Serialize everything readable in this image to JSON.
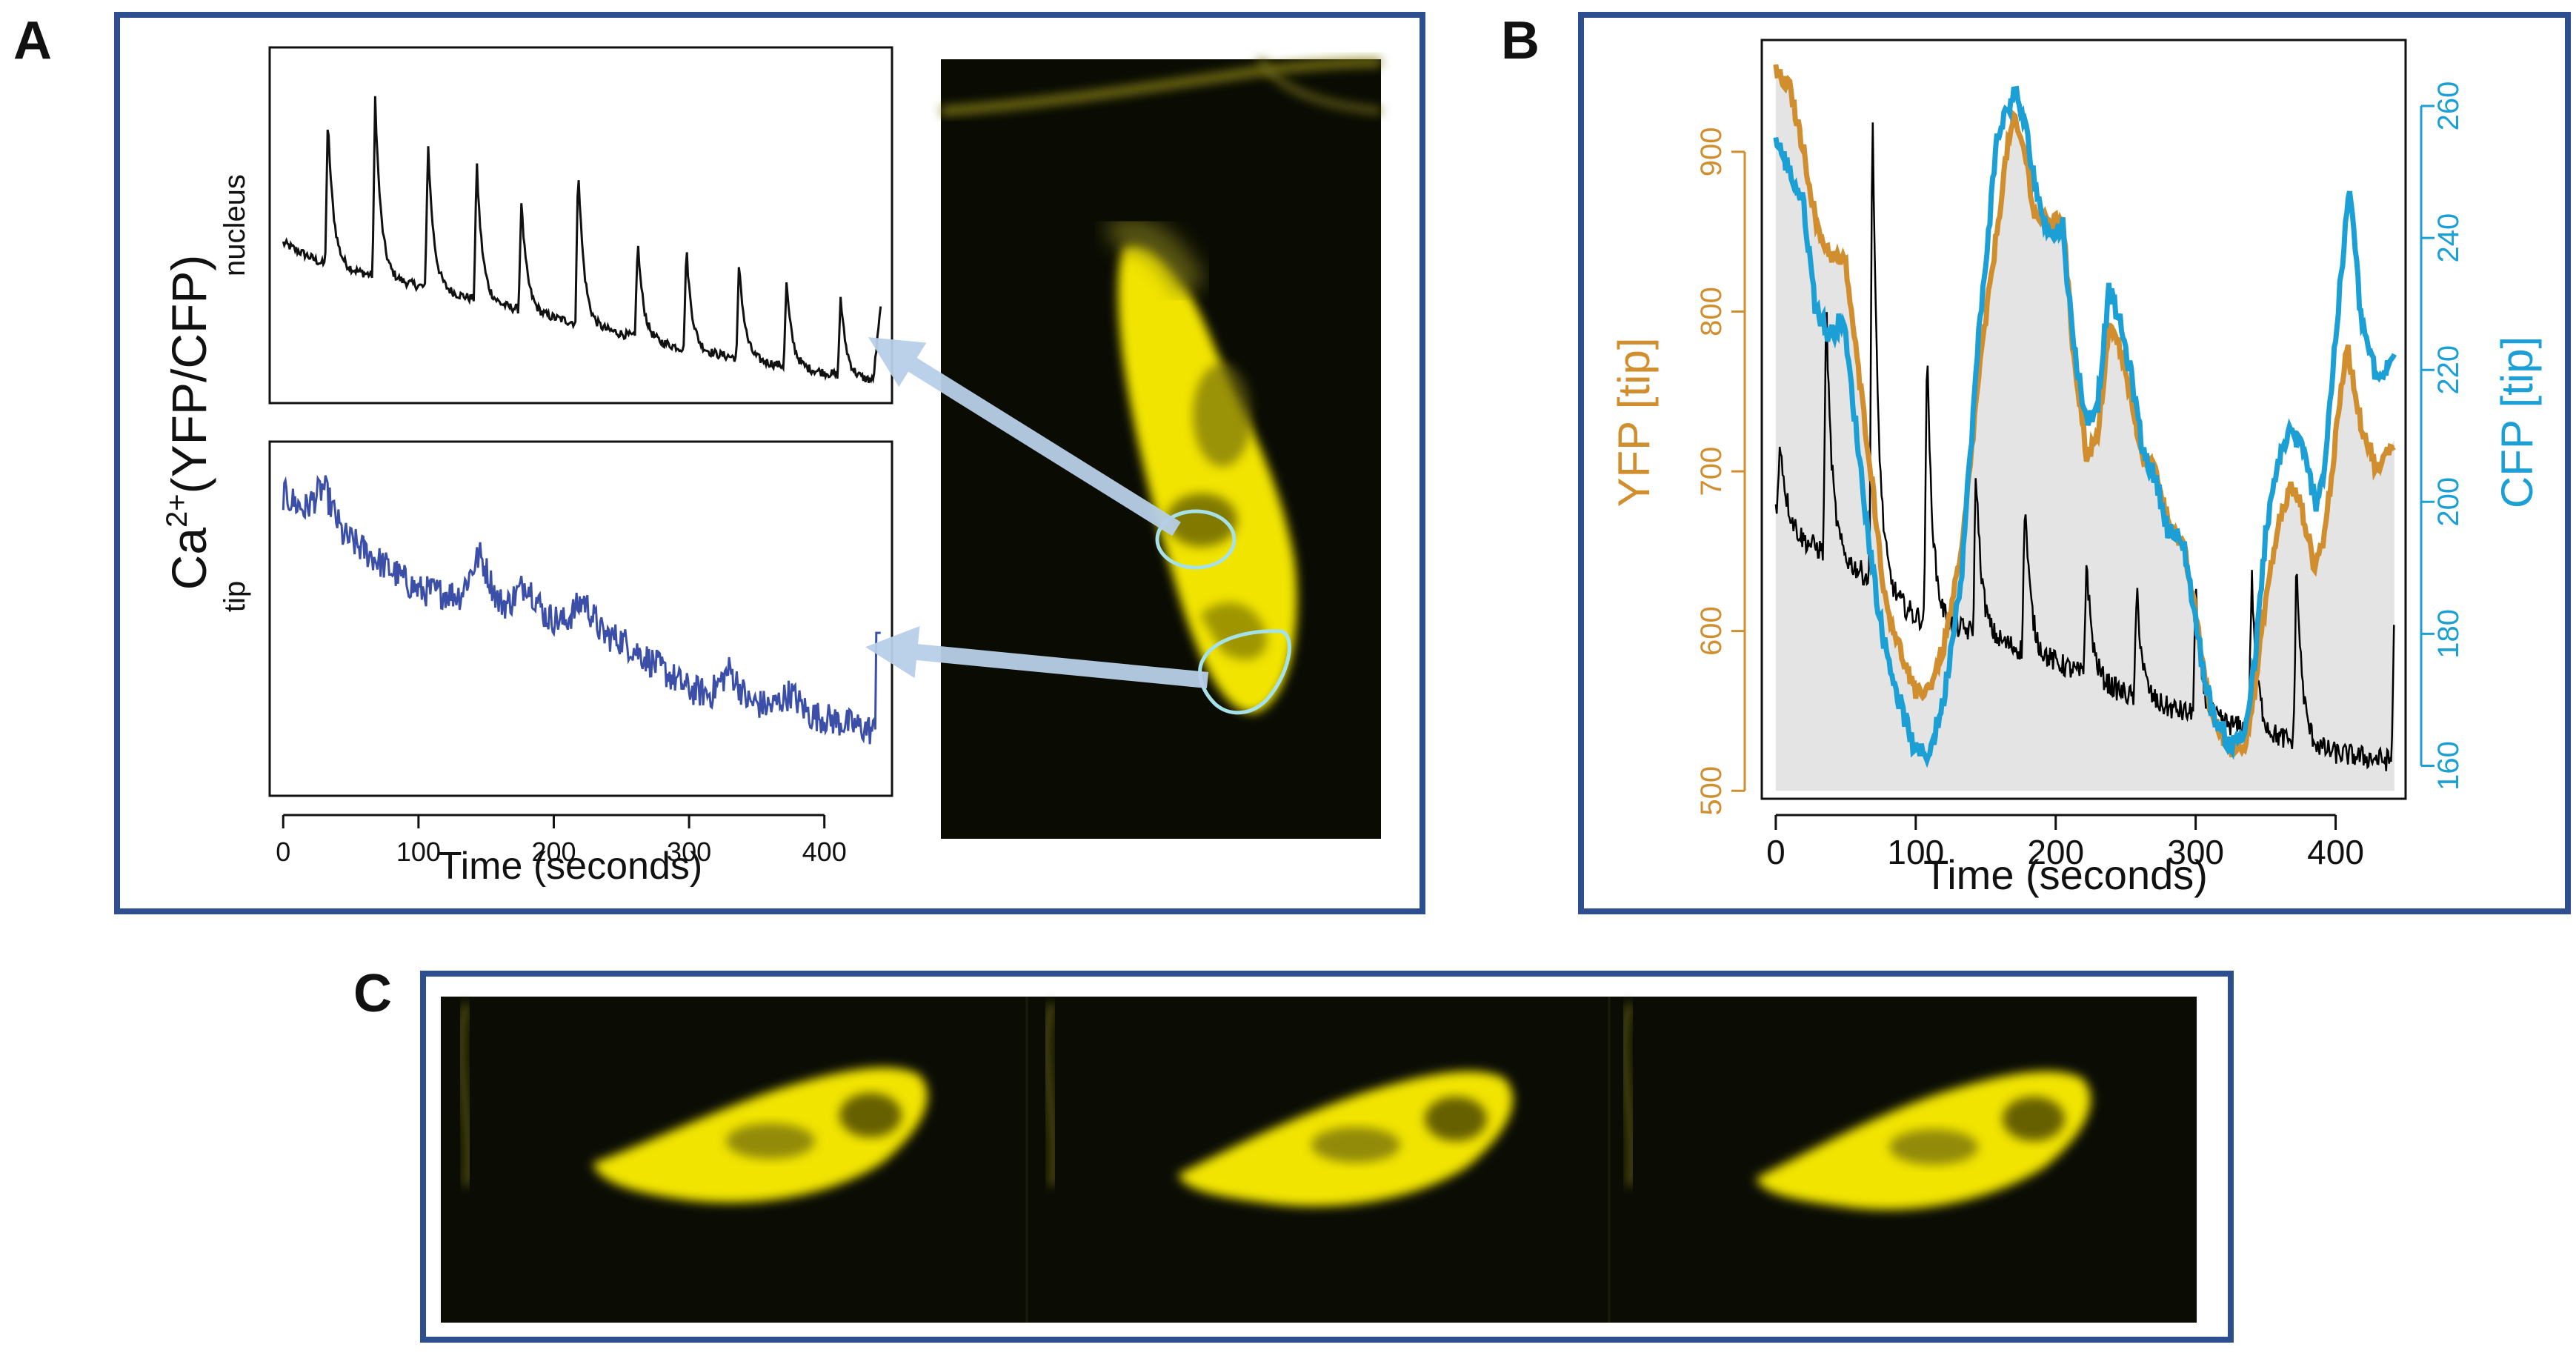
{
  "panels": {
    "a_label": "A",
    "b_label": "B",
    "c_label": "C"
  },
  "colors": {
    "frame": "#2e4f8f",
    "nucleus_trace": "#111111",
    "tip_trace": "#3b4fa8",
    "yfp": "#d08e2e",
    "cfp": "#1b9fd4",
    "ratio_trace": "#000000",
    "shade": "#e3e4e3",
    "fluorescence": "#f2e600",
    "arrow": "#b7cfe8",
    "roi": "#a6e0e8"
  },
  "chart_data": [
    {
      "id": "A-nucleus",
      "type": "line",
      "ylabel": "nucleus",
      "shared_ylabel": "Ca2+(YFP/CFP)",
      "xlim": [
        -10,
        450
      ],
      "ylim": [
        0,
        1
      ],
      "baseline": [
        [
          0,
          0.45
        ],
        [
          30,
          0.39
        ],
        [
          100,
          0.33
        ],
        [
          200,
          0.24
        ],
        [
          300,
          0.15
        ],
        [
          440,
          0.06
        ]
      ],
      "peaks": [
        {
          "x": 33,
          "y": 0.8
        },
        {
          "x": 68,
          "y": 0.86
        },
        {
          "x": 107,
          "y": 0.74
        },
        {
          "x": 143,
          "y": 0.68
        },
        {
          "x": 176,
          "y": 0.57
        },
        {
          "x": 218,
          "y": 0.68
        },
        {
          "x": 262,
          "y": 0.46
        },
        {
          "x": 298,
          "y": 0.44
        },
        {
          "x": 337,
          "y": 0.4
        },
        {
          "x": 372,
          "y": 0.34
        },
        {
          "x": 412,
          "y": 0.3
        }
      ],
      "end_spike": {
        "x": 440,
        "y": 0.28
      }
    },
    {
      "id": "A-tip",
      "type": "line",
      "ylabel": "tip",
      "xlabel": "Time (seconds)",
      "xticks": [
        0,
        100,
        200,
        300,
        400
      ],
      "xlim": [
        -10,
        450
      ],
      "ylim": [
        0,
        1
      ],
      "trend": [
        [
          0,
          0.85
        ],
        [
          50,
          0.72
        ],
        [
          100,
          0.58
        ],
        [
          150,
          0.56
        ],
        [
          200,
          0.5
        ],
        [
          250,
          0.44
        ],
        [
          300,
          0.3
        ],
        [
          350,
          0.26
        ],
        [
          400,
          0.22
        ],
        [
          440,
          0.18
        ]
      ],
      "bumps": [
        {
          "x": 30,
          "a": 0.1
        },
        {
          "x": 145,
          "a": 0.12
        },
        {
          "x": 180,
          "a": 0.08
        },
        {
          "x": 222,
          "a": 0.08
        },
        {
          "x": 330,
          "a": 0.08
        },
        {
          "x": 375,
          "a": 0.05
        }
      ],
      "end_spike": {
        "x": 442,
        "y": 0.46
      }
    },
    {
      "id": "B",
      "type": "line",
      "xlabel": "Time (seconds)",
      "ylabel_left": "YFP [tip]",
      "ylabel_right": "CFP [tip]",
      "xticks": [
        0,
        100,
        200,
        300,
        400
      ],
      "yticks_left": [
        500,
        600,
        700,
        800,
        900
      ],
      "yticks_right": [
        160,
        180,
        200,
        220,
        240,
        260
      ],
      "xlim": [
        -10,
        450
      ],
      "ylim_left": [
        495,
        970
      ],
      "ylim_right": [
        155,
        270
      ],
      "series": [
        {
          "name": "YFP [tip]",
          "axis": "left",
          "points": [
            [
              0,
              950
            ],
            [
              10,
              940
            ],
            [
              20,
              900
            ],
            [
              30,
              850
            ],
            [
              40,
              835
            ],
            [
              50,
              830
            ],
            [
              58,
              770
            ],
            [
              68,
              700
            ],
            [
              78,
              620
            ],
            [
              90,
              585
            ],
            [
              100,
              560
            ],
            [
              110,
              565
            ],
            [
              120,
              590
            ],
            [
              133,
              650
            ],
            [
              145,
              760
            ],
            [
              158,
              850
            ],
            [
              165,
              900
            ],
            [
              170,
              920
            ],
            [
              178,
              900
            ],
            [
              185,
              860
            ],
            [
              198,
              855
            ],
            [
              205,
              860
            ],
            [
              212,
              780
            ],
            [
              222,
              710
            ],
            [
              230,
              720
            ],
            [
              238,
              790
            ],
            [
              245,
              780
            ],
            [
              255,
              740
            ],
            [
              262,
              710
            ],
            [
              272,
              700
            ],
            [
              280,
              670
            ],
            [
              292,
              650
            ],
            [
              300,
              610
            ],
            [
              305,
              580
            ],
            [
              312,
              545
            ],
            [
              325,
              525
            ],
            [
              335,
              530
            ],
            [
              342,
              560
            ],
            [
              350,
              620
            ],
            [
              360,
              670
            ],
            [
              368,
              690
            ],
            [
              375,
              680
            ],
            [
              385,
              640
            ],
            [
              392,
              660
            ],
            [
              400,
              720
            ],
            [
              408,
              780
            ],
            [
              418,
              730
            ],
            [
              430,
              700
            ],
            [
              442,
              720
            ]
          ]
        },
        {
          "name": "CFP [tip]",
          "axis": "right",
          "points": [
            [
              0,
              255
            ],
            [
              10,
              250
            ],
            [
              20,
              245
            ],
            [
              28,
              230
            ],
            [
              38,
              225
            ],
            [
              48,
              228
            ],
            [
              58,
              210
            ],
            [
              66,
              195
            ],
            [
              76,
              180
            ],
            [
              88,
              170
            ],
            [
              100,
              162
            ],
            [
              110,
              162
            ],
            [
              120,
              170
            ],
            [
              133,
              190
            ],
            [
              145,
              225
            ],
            [
              158,
              255
            ],
            [
              166,
              260
            ],
            [
              172,
              262
            ],
            [
              180,
              255
            ],
            [
              188,
              245
            ],
            [
              198,
              240
            ],
            [
              205,
              242
            ],
            [
              212,
              225
            ],
            [
              222,
              212
            ],
            [
              230,
              215
            ],
            [
              238,
              232
            ],
            [
              245,
              228
            ],
            [
              255,
              218
            ],
            [
              262,
              208
            ],
            [
              272,
              203
            ],
            [
              280,
              196
            ],
            [
              292,
              193
            ],
            [
              300,
              182
            ],
            [
              305,
              175
            ],
            [
              312,
              168
            ],
            [
              325,
              163
            ],
            [
              335,
              165
            ],
            [
              342,
              175
            ],
            [
              350,
              195
            ],
            [
              360,
              207
            ],
            [
              368,
              211
            ],
            [
              376,
              208
            ],
            [
              386,
              200
            ],
            [
              392,
              205
            ],
            [
              400,
              225
            ],
            [
              410,
              248
            ],
            [
              418,
              228
            ],
            [
              430,
              218
            ],
            [
              442,
              222
            ]
          ]
        }
      ],
      "ratio_peaks": [
        {
          "x": 3,
          "h": 0.48
        },
        {
          "x": 36,
          "h": 0.66
        },
        {
          "x": 69,
          "h": 0.94
        },
        {
          "x": 108,
          "h": 0.6
        },
        {
          "x": 143,
          "h": 0.44
        },
        {
          "x": 178,
          "h": 0.4
        },
        {
          "x": 222,
          "h": 0.32
        },
        {
          "x": 258,
          "h": 0.28
        },
        {
          "x": 300,
          "h": 0.28
        },
        {
          "x": 340,
          "h": 0.3
        },
        {
          "x": 372,
          "h": 0.32
        },
        {
          "x": 442,
          "h": 0.26
        }
      ]
    }
  ]
}
